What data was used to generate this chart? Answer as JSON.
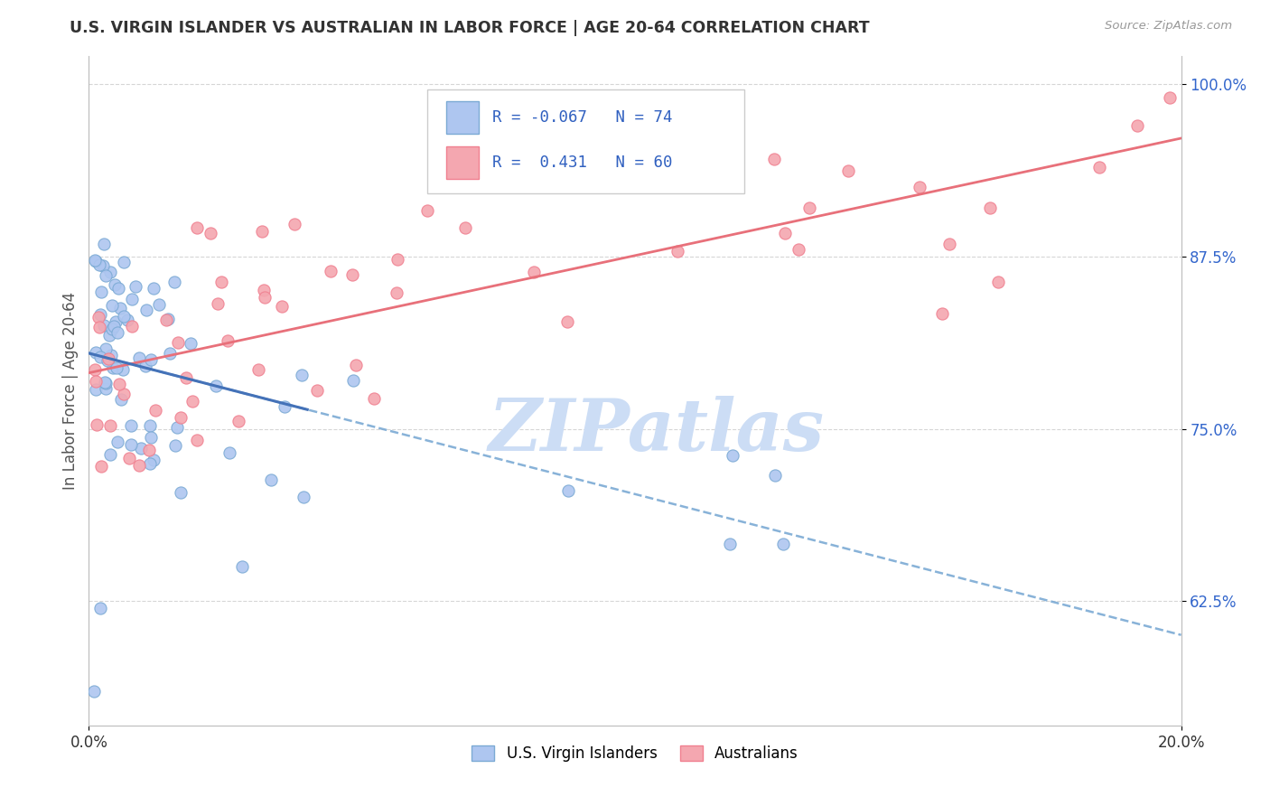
{
  "title": "U.S. VIRGIN ISLANDER VS AUSTRALIAN IN LABOR FORCE | AGE 20-64 CORRELATION CHART",
  "source": "Source: ZipAtlas.com",
  "ylabel": "In Labor Force | Age 20-64",
  "xlim": [
    0.0,
    0.2
  ],
  "ylim": [
    0.535,
    1.02
  ],
  "xtick_labels": [
    "0.0%",
    "20.0%"
  ],
  "xtick_positions": [
    0.0,
    0.2
  ],
  "ytick_labels": [
    "62.5%",
    "75.0%",
    "87.5%",
    "100.0%"
  ],
  "ytick_positions": [
    0.625,
    0.75,
    0.875,
    1.0
  ],
  "r_vi": -0.067,
  "n_vi": 74,
  "r_au": 0.431,
  "n_au": 60,
  "color_vi": "#aec6f0",
  "color_au": "#f4a7b0",
  "color_vi_edge": "#7baad4",
  "color_au_edge": "#f08090",
  "color_vi_line": "#7baad4",
  "color_au_line": "#e8707a",
  "watermark": "ZIPatlas",
  "watermark_color": "#ccddf5",
  "legend_r_color": "#3060c0",
  "background_color": "#ffffff",
  "figsize": [
    14.06,
    8.92
  ],
  "dpi": 100
}
